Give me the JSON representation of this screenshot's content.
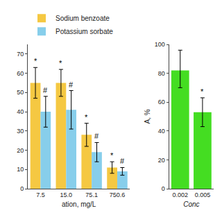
{
  "chart_data": [
    {
      "type": "bar",
      "categories": [
        "7.5",
        "15.0",
        "75.1",
        "750.6"
      ],
      "xlabel": "ation, mg/L",
      "series": [
        {
          "name": "Sodium benzoate",
          "color": "#F5C842",
          "values": [
            55,
            55,
            28,
            11
          ],
          "errors": [
            8,
            7,
            6,
            3
          ]
        },
        {
          "name": "Potassium sorbate",
          "color": "#87CEEB",
          "values": [
            40,
            41,
            19,
            9
          ],
          "errors": [
            8,
            10,
            5,
            2
          ]
        }
      ],
      "ylim": [
        0,
        75
      ],
      "yticks": [
        0,
        10,
        20,
        30,
        40,
        50,
        60,
        70
      ],
      "grid": false,
      "legend": "upper left",
      "annotations": [
        {
          "text": "*",
          "category": "7.5",
          "series": "Sodium benzoate"
        },
        {
          "text": "*",
          "category": "15.0",
          "series": "Sodium benzoate"
        },
        {
          "text": "*",
          "category": "75.1",
          "series": "Sodium benzoate"
        },
        {
          "text": "*",
          "category": "750.6",
          "series": "Sodium benzoate"
        },
        {
          "text": "#",
          "category": "7.5",
          "series": "Potassium sorbate"
        },
        {
          "text": "#",
          "category": "15.0",
          "series": "Potassium sorbate"
        },
        {
          "text": "#",
          "category": "75.1",
          "series": "Potassium sorbate"
        },
        {
          "text": "#",
          "category": "750.6",
          "series": "Potassium sorbate"
        }
      ]
    },
    {
      "type": "bar",
      "categories": [
        "0.002",
        "0.005"
      ],
      "values": [
        82,
        53
      ],
      "errors_upper": [
        14,
        10
      ],
      "errors_lower": [
        12,
        10
      ],
      "color": "#44DD22",
      "xlabel": "Conc",
      "ylabel": "A, %",
      "ylim": [
        0,
        100
      ],
      "yticks": [
        0,
        20,
        40,
        60,
        80,
        100
      ],
      "grid": false,
      "annotations": [
        {
          "text": "*",
          "category": "0.005"
        }
      ]
    }
  ]
}
